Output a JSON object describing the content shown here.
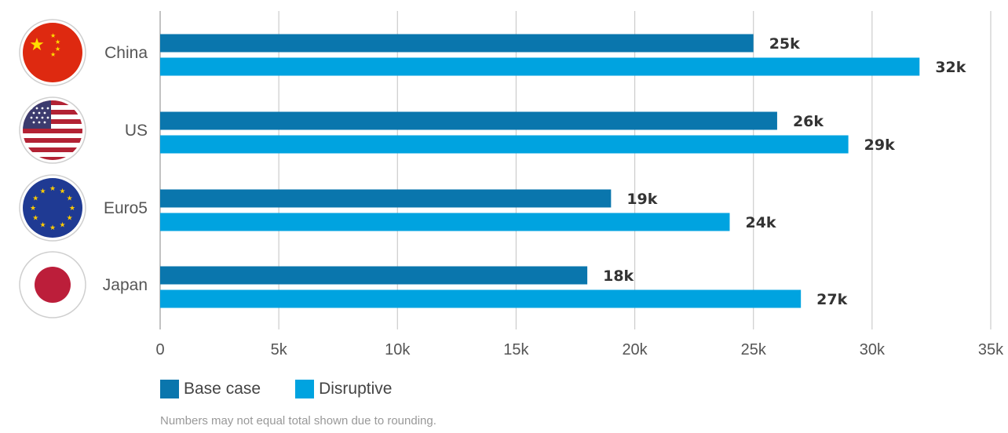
{
  "chart_data": {
    "type": "bar",
    "orientation": "horizontal",
    "categories": [
      "China",
      "US",
      "Euro5",
      "Japan"
    ],
    "series": [
      {
        "name": "Base case",
        "values": [
          25,
          26,
          19,
          18
        ],
        "labels": [
          "25k",
          "26k",
          "19k",
          "18k"
        ],
        "color": "#0a76ad"
      },
      {
        "name": "Disruptive",
        "values": [
          32,
          29,
          24,
          27
        ],
        "labels": [
          "32k",
          "29k",
          "24k",
          "27k"
        ],
        "color": "#00a3e0"
      }
    ],
    "xlim": [
      0,
      35
    ],
    "xticks": [
      0,
      5,
      10,
      15,
      20,
      25,
      30,
      35
    ],
    "xtick_labels": [
      "0",
      "5k",
      "10k",
      "15k",
      "20k",
      "25k",
      "30k",
      "35k"
    ],
    "grid": true,
    "legend_position": "bottom-left",
    "flag_icons": [
      "china-flag-icon",
      "us-flag-icon",
      "eu-flag-icon",
      "japan-flag-icon"
    ]
  },
  "legend": {
    "base_label": "Base case",
    "disruptive_label": "Disruptive"
  },
  "footnote": "Numbers may not equal total shown due to rounding."
}
